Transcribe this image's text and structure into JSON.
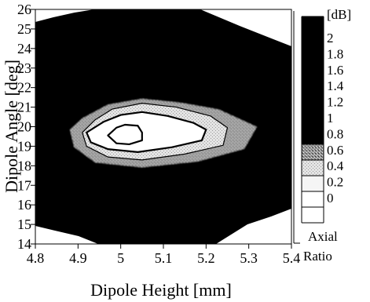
{
  "chart_data": {
    "type": "heatmap",
    "title": "",
    "xlabel": "Dipole Height [mm]",
    "ylabel": "Dipole Angle [deg]",
    "xlim": [
      4.8,
      5.4
    ],
    "ylim": [
      14,
      26
    ],
    "x_ticks": [
      "4.8",
      "4.9",
      "5",
      "5.1",
      "5.2",
      "5.3",
      "5.4"
    ],
    "y_ticks": [
      "14",
      "15",
      "16",
      "17",
      "18",
      "19",
      "20",
      "21",
      "22",
      "23",
      "24",
      "25",
      "26"
    ],
    "colorbar": {
      "unit": "[dB]",
      "title_line1": "Axial",
      "title_line2": "Ratio",
      "labels": [
        "2",
        "1.8",
        "1.6",
        "1.4",
        "1.2",
        "1",
        "0.8",
        "0.6",
        "0.4",
        "0.2",
        "0"
      ],
      "levels": [
        {
          "range": [
            0,
            0.2
          ],
          "color": "#ffffff"
        },
        {
          "range": [
            0.2,
            0.4
          ],
          "color": "#f5f5f5"
        },
        {
          "range": [
            0.4,
            0.6
          ],
          "color": "#cfcfcf"
        },
        {
          "range": [
            0.6,
            0.8
          ],
          "color": "#8a8a8a"
        },
        {
          "range": [
            0.8,
            2.0
          ],
          "color": "#000000"
        }
      ]
    },
    "contours": [
      {
        "level": 0.8,
        "fill": "#8a8a8a",
        "points": [
          [
            4.88,
            19.85
          ],
          [
            4.91,
            20.45
          ],
          [
            4.97,
            21.15
          ],
          [
            5.05,
            21.45
          ],
          [
            5.14,
            21.25
          ],
          [
            5.23,
            20.9
          ],
          [
            5.32,
            20.0
          ],
          [
            5.29,
            18.85
          ],
          [
            5.18,
            18.2
          ],
          [
            5.05,
            17.9
          ],
          [
            4.94,
            18.15
          ],
          [
            4.89,
            18.95
          ]
        ]
      },
      {
        "level": 0.6,
        "fill": "#cfcfcf",
        "points": [
          [
            4.91,
            19.7
          ],
          [
            4.94,
            20.35
          ],
          [
            4.98,
            20.9
          ],
          [
            5.05,
            21.2
          ],
          [
            5.13,
            21.0
          ],
          [
            5.21,
            20.55
          ],
          [
            5.25,
            19.95
          ],
          [
            5.24,
            19.05
          ],
          [
            5.15,
            18.6
          ],
          [
            5.05,
            18.3
          ],
          [
            4.97,
            18.45
          ],
          [
            4.92,
            19.0
          ]
        ]
      },
      {
        "level": 0.4,
        "fill": "#ffffff",
        "points": [
          [
            4.92,
            19.7
          ],
          [
            4.96,
            20.25
          ],
          [
            5.0,
            20.6
          ],
          [
            5.05,
            20.75
          ],
          [
            5.11,
            20.55
          ],
          [
            5.17,
            20.2
          ],
          [
            5.2,
            19.85
          ],
          [
            5.19,
            19.3
          ],
          [
            5.12,
            18.95
          ],
          [
            5.04,
            18.7
          ],
          [
            4.97,
            18.85
          ],
          [
            4.93,
            19.2
          ]
        ]
      },
      {
        "level": 0.2,
        "fill": "#ffffff",
        "points": [
          [
            4.97,
            19.55
          ],
          [
            4.99,
            19.95
          ],
          [
            5.01,
            20.1
          ],
          [
            5.04,
            20.05
          ],
          [
            5.05,
            19.7
          ],
          [
            5.05,
            19.3
          ],
          [
            5.02,
            19.1
          ],
          [
            4.99,
            19.15
          ]
        ]
      }
    ]
  }
}
